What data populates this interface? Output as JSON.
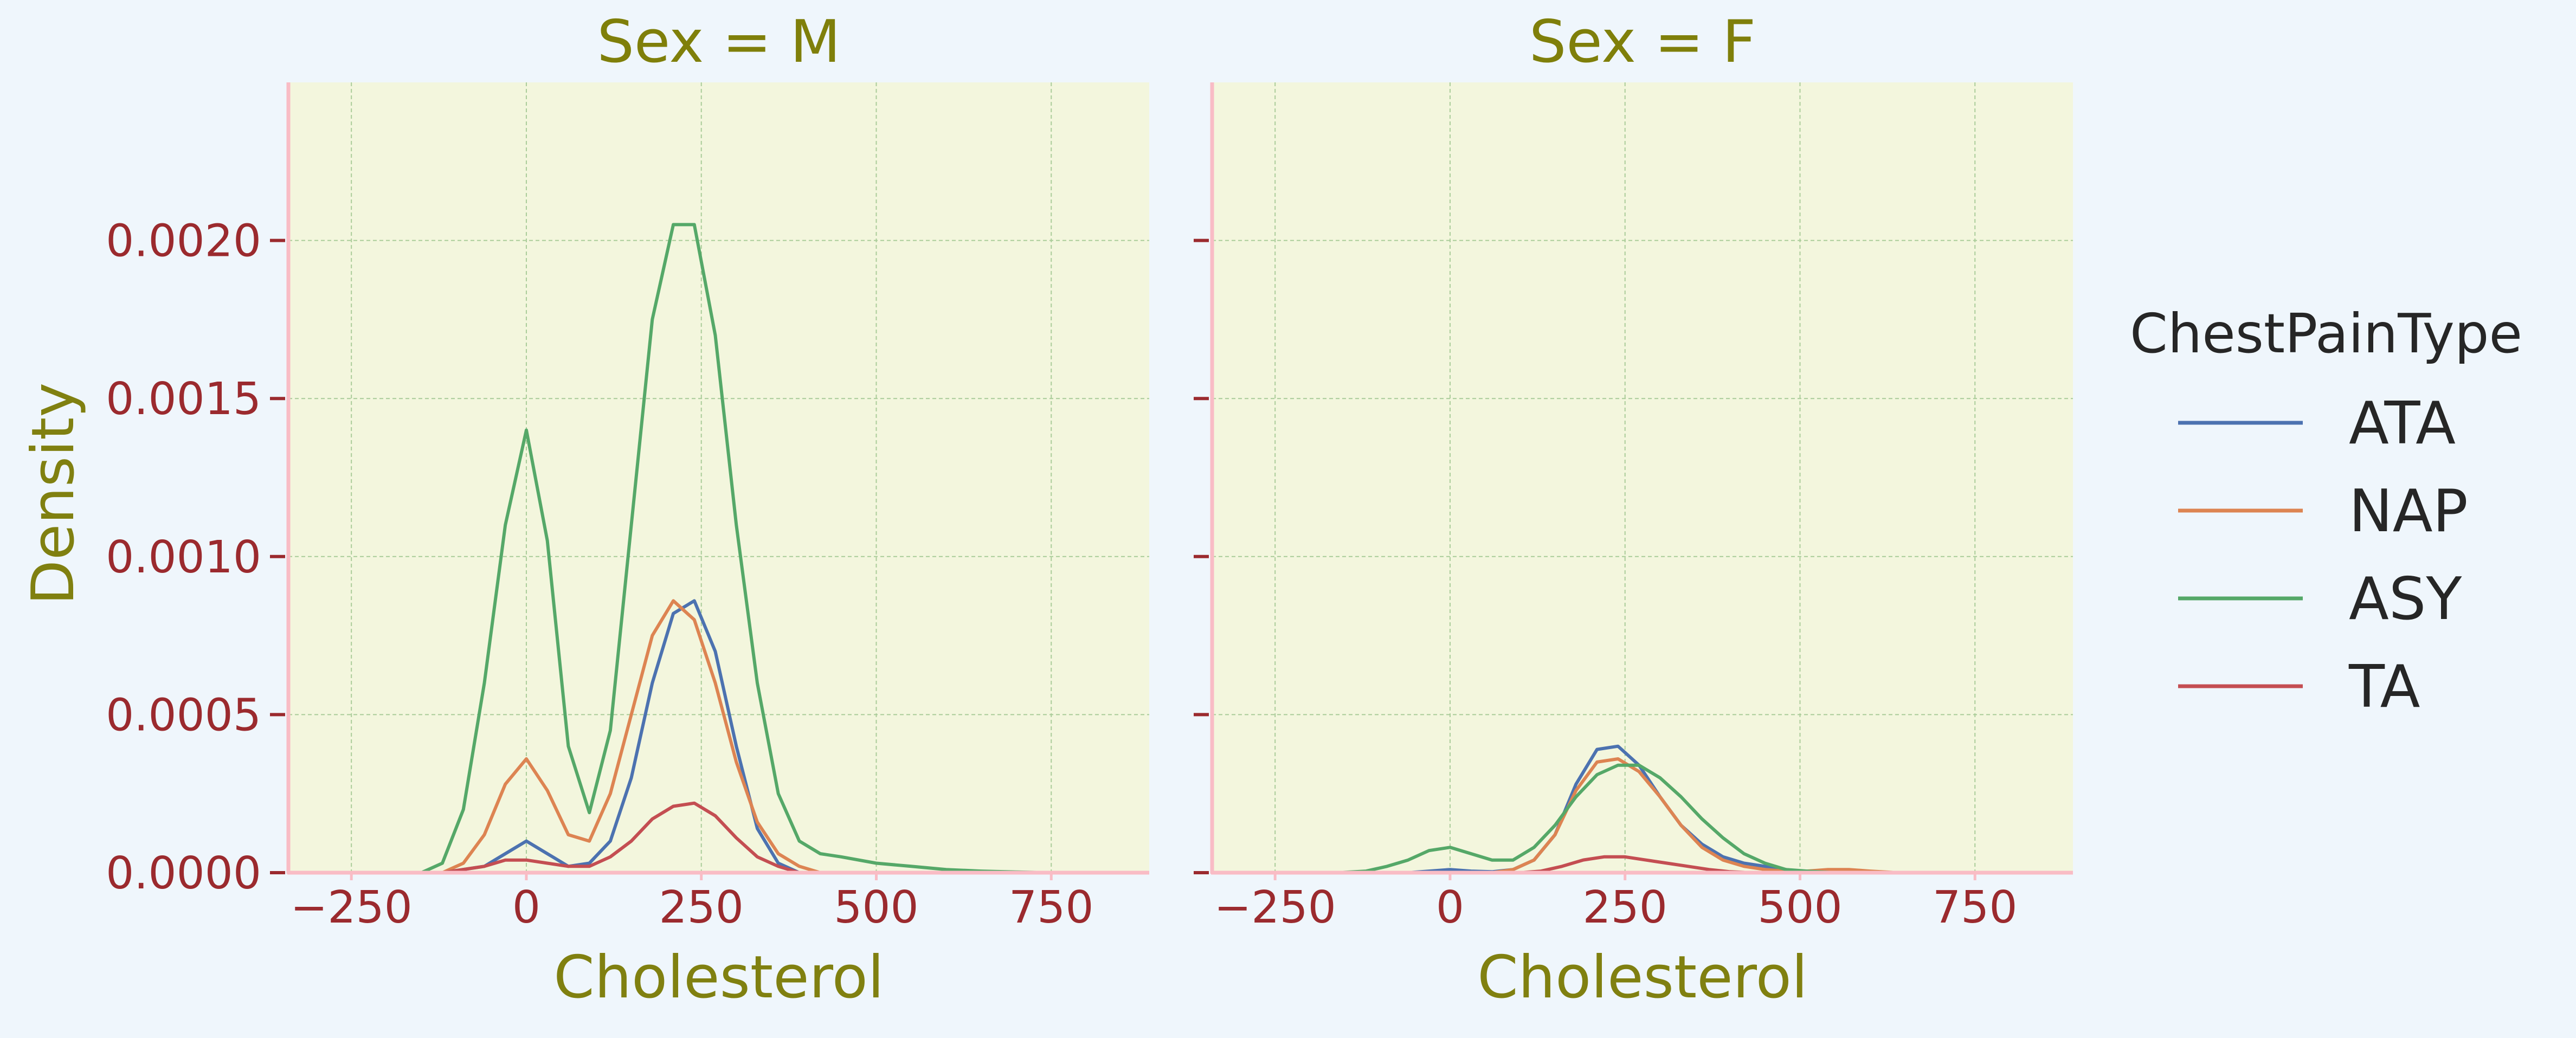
{
  "chart_data": [
    {
      "type": "line",
      "title": "Sex = M",
      "xlabel": "Cholesterol",
      "ylabel": "Density",
      "xlim": [
        -340,
        890
      ],
      "ylim": [
        0,
        0.0025
      ],
      "xticks": [
        -250,
        0,
        250,
        500,
        750
      ],
      "xtick_labels": [
        "−250",
        "0",
        "250",
        "500",
        "750"
      ],
      "yticks": [
        0,
        0.0005,
        0.001,
        0.0015,
        0.002
      ],
      "ytick_labels": [
        "0.0000",
        "0.0005",
        "0.0010",
        "0.0015",
        "0.0020"
      ],
      "grid": true,
      "series": [
        {
          "name": "ATA",
          "color": "#4c72b0",
          "x": [
            -120,
            -60,
            -30,
            0,
            30,
            60,
            90,
            120,
            150,
            180,
            210,
            240,
            270,
            300,
            330,
            360,
            390
          ],
          "y": [
            0,
            2e-05,
            6e-05,
            0.0001,
            6e-05,
            2e-05,
            3e-05,
            0.0001,
            0.0003,
            0.0006,
            0.00082,
            0.00086,
            0.0007,
            0.0004,
            0.00014,
            3e-05,
            0
          ]
        },
        {
          "name": "NAP",
          "color": "#dd8452",
          "x": [
            -120,
            -90,
            -60,
            -30,
            0,
            30,
            60,
            90,
            120,
            150,
            180,
            210,
            240,
            270,
            300,
            330,
            360,
            390,
            420
          ],
          "y": [
            0,
            3e-05,
            0.00012,
            0.00028,
            0.00036,
            0.00026,
            0.00012,
            0.0001,
            0.00025,
            0.0005,
            0.00075,
            0.00086,
            0.0008,
            0.0006,
            0.00035,
            0.00016,
            6e-05,
            2e-05,
            0
          ]
        },
        {
          "name": "ASY",
          "color": "#55a868",
          "x": [
            -150,
            -120,
            -90,
            -60,
            -30,
            0,
            30,
            60,
            90,
            120,
            150,
            180,
            210,
            240,
            270,
            300,
            330,
            360,
            390,
            420,
            450,
            500,
            550,
            600,
            650,
            700,
            750
          ],
          "y": [
            0,
            3e-05,
            0.0002,
            0.0006,
            0.0011,
            0.0014,
            0.00105,
            0.0004,
            0.00019,
            0.00045,
            0.0011,
            0.00175,
            0.00205,
            0.00205,
            0.0017,
            0.0011,
            0.0006,
            0.00025,
            0.0001,
            6e-05,
            5e-05,
            3e-05,
            2e-05,
            1e-05,
            5e-06,
            2e-06,
            0
          ]
        },
        {
          "name": "TA",
          "color": "#c44e52",
          "x": [
            -120,
            -60,
            -30,
            0,
            30,
            60,
            90,
            120,
            150,
            180,
            210,
            240,
            270,
            300,
            330,
            360,
            390
          ],
          "y": [
            0,
            2e-05,
            4e-05,
            4e-05,
            3e-05,
            2e-05,
            2e-05,
            5e-05,
            0.0001,
            0.00017,
            0.00021,
            0.00022,
            0.00018,
            0.00011,
            5e-05,
            2e-05,
            0
          ]
        }
      ]
    },
    {
      "type": "line",
      "title": "Sex = F",
      "xlabel": "Cholesterol",
      "ylabel": "",
      "xlim": [
        -340,
        890
      ],
      "ylim": [
        0,
        0.0025
      ],
      "xticks": [
        -250,
        0,
        250,
        500,
        750
      ],
      "xtick_labels": [
        "−250",
        "0",
        "250",
        "500",
        "750"
      ],
      "yticks": [
        0,
        0.0005,
        0.001,
        0.0015,
        0.002
      ],
      "grid": true,
      "series": [
        {
          "name": "ATA",
          "color": "#4c72b0",
          "x": [
            -60,
            -30,
            0,
            30,
            60,
            90,
            120,
            150,
            180,
            210,
            240,
            270,
            300,
            330,
            360,
            390,
            420,
            450,
            480,
            520
          ],
          "y": [
            0,
            5e-06,
            1e-05,
            5e-06,
            3e-06,
            1e-05,
            4e-05,
            0.00012,
            0.00028,
            0.00039,
            0.0004,
            0.00034,
            0.00024,
            0.00015,
            9e-05,
            5e-05,
            3e-05,
            2e-05,
            1e-05,
            0
          ]
        },
        {
          "name": "NAP",
          "color": "#dd8452",
          "x": [
            60,
            90,
            120,
            150,
            180,
            210,
            240,
            270,
            300,
            330,
            360,
            390,
            420,
            450,
            480,
            510,
            540,
            570,
            600,
            640
          ],
          "y": [
            0,
            1e-05,
            4e-05,
            0.00012,
            0.00026,
            0.00035,
            0.00036,
            0.00032,
            0.00024,
            0.00015,
            8e-05,
            4e-05,
            2e-05,
            1e-05,
            5e-06,
            5e-06,
            1e-05,
            1e-05,
            5e-06,
            0
          ]
        },
        {
          "name": "ASY",
          "color": "#55a868",
          "x": [
            -160,
            -120,
            -90,
            -60,
            -30,
            0,
            30,
            60,
            90,
            120,
            150,
            180,
            210,
            240,
            270,
            300,
            330,
            360,
            390,
            420,
            450,
            480,
            510,
            550
          ],
          "y": [
            0,
            5e-06,
            2e-05,
            4e-05,
            7e-05,
            8e-05,
            6e-05,
            4e-05,
            4e-05,
            8e-05,
            0.00015,
            0.00024,
            0.00031,
            0.00034,
            0.00034,
            0.0003,
            0.00024,
            0.00017,
            0.00011,
            6e-05,
            3e-05,
            1e-05,
            5e-06,
            0
          ]
        },
        {
          "name": "TA",
          "color": "#c44e52",
          "x": [
            100,
            130,
            160,
            190,
            220,
            250,
            280,
            310,
            340,
            370,
            400,
            430
          ],
          "y": [
            0,
            5e-06,
            2e-05,
            4e-05,
            5e-05,
            5e-05,
            4e-05,
            3e-05,
            2e-05,
            1e-05,
            3e-06,
            0
          ]
        }
      ]
    }
  ],
  "legend": {
    "title": "ChestPainType",
    "placement": "right",
    "items": [
      {
        "label": "ATA",
        "color": "#4c72b0"
      },
      {
        "label": "NAP",
        "color": "#dd8452"
      },
      {
        "label": "ASY",
        "color": "#55a868"
      },
      {
        "label": "TA",
        "color": "#c44e52"
      }
    ]
  },
  "colors": {
    "background": "#eff6fc",
    "plot_background": "#f3f6dd",
    "axis_spine": "#f9bcc5",
    "tick_label": "#9b2a2e",
    "axis_title": "#808010",
    "panel_title": "#7f7f0a",
    "grid": "#aacc99",
    "legend_text": "#262626"
  }
}
